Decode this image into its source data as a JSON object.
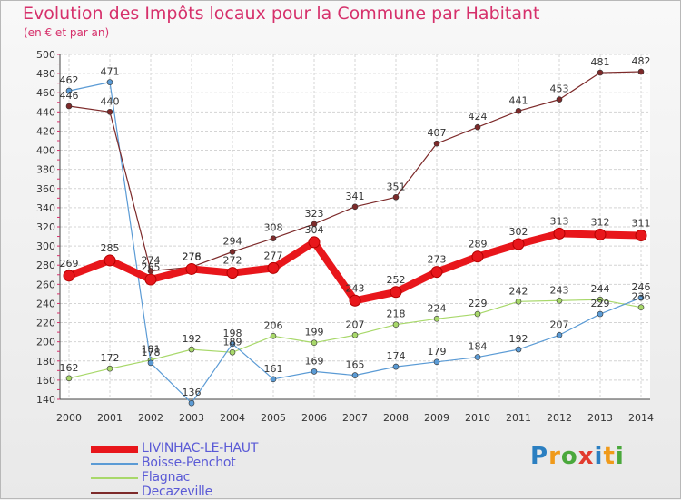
{
  "chart_data": {
    "type": "line",
    "title": "Evolution des Impôts locaux pour la Commune par Habitant",
    "subtitle": "(en € et par an)",
    "x": [
      "2000",
      "2001",
      "2002",
      "2003",
      "2004",
      "2005",
      "2006",
      "2007",
      "2008",
      "2009",
      "2010",
      "2011",
      "2012",
      "2013",
      "2014"
    ],
    "ylim": [
      140,
      500
    ],
    "yticks": [
      140,
      160,
      180,
      200,
      220,
      240,
      260,
      280,
      300,
      320,
      340,
      360,
      380,
      400,
      420,
      440,
      460,
      480,
      500
    ],
    "grid": true,
    "series": [
      {
        "name": "LIVINHAC-LE-HAUT",
        "color": "#e8161b",
        "emphasis": true,
        "values": [
          269,
          285,
          265,
          276,
          272,
          277,
          304,
          243,
          252,
          273,
          289,
          302,
          313,
          312,
          311
        ],
        "labels": [
          "269",
          "285",
          "265",
          "276",
          "272",
          "277",
          "304",
          "243",
          "252",
          "273",
          "289",
          "302",
          "313",
          "312",
          "311"
        ]
      },
      {
        "name": "Boisse-Penchot",
        "color": "#5b9bd5",
        "values": [
          462,
          471,
          178,
          136,
          198,
          161,
          169,
          165,
          174,
          179,
          184,
          192,
          207,
          229,
          246
        ],
        "labels": [
          "462",
          "471",
          "178",
          "136",
          "198",
          "161",
          "169",
          "165",
          "174",
          "179",
          "184",
          "192",
          "207",
          "229",
          "246"
        ]
      },
      {
        "name": "Flagnac",
        "color": "#a8d86a",
        "values": [
          162,
          172,
          181,
          192,
          189,
          206,
          199,
          207,
          218,
          224,
          229,
          242,
          243,
          244,
          236
        ],
        "labels": [
          "162",
          "172",
          "181",
          "192",
          "189",
          "206",
          "199",
          "207",
          "218",
          "224",
          "229",
          "242",
          "243",
          "244",
          "236"
        ]
      },
      {
        "name": "Decazeville",
        "color": "#7d2a2a",
        "values": [
          446,
          440,
          274,
          278,
          294,
          308,
          323,
          341,
          351,
          407,
          424,
          441,
          453,
          481,
          482
        ],
        "labels": [
          "446",
          "440",
          "274",
          "278",
          "294",
          "308",
          "323",
          "341",
          "351",
          "407",
          "424",
          "441",
          "453",
          "481",
          "482"
        ]
      }
    ]
  },
  "logo": {
    "text": "Proxiti",
    "letters": [
      {
        "ch": "P",
        "color": "#2b7fc1"
      },
      {
        "ch": "r",
        "color": "#f09a1a"
      },
      {
        "ch": "o",
        "color": "#4aa83c"
      },
      {
        "ch": "x",
        "color": "#e23b2e"
      },
      {
        "ch": "i",
        "color": "#2b7fc1"
      },
      {
        "ch": "t",
        "color": "#f09a1a"
      },
      {
        "ch": "i",
        "color": "#4aa83c"
      }
    ]
  }
}
